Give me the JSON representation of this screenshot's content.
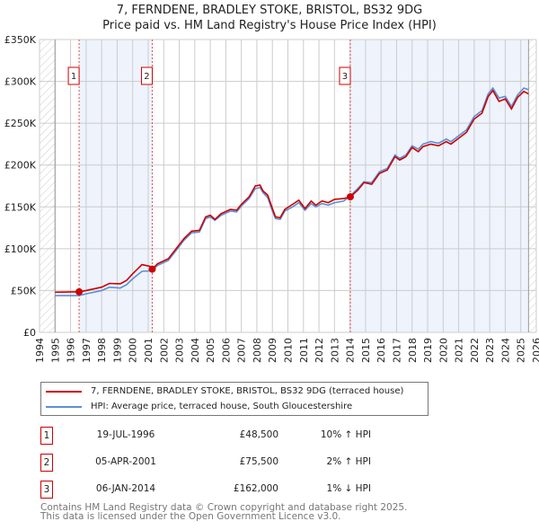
{
  "chart_data": {
    "type": "line",
    "title": "7, FERNDENE, BRADLEY STOKE, BRISTOL, BS32 9DG",
    "subtitle": "Price paid vs. HM Land Registry's House Price Index (HPI)",
    "xlim": [
      1994,
      2026
    ],
    "ylim": [
      0,
      350000
    ],
    "yticks": [
      0,
      50000,
      100000,
      150000,
      200000,
      250000,
      300000,
      350000
    ],
    "ytick_labels": [
      "£0",
      "£50K",
      "£100K",
      "£150K",
      "£200K",
      "£250K",
      "£300K",
      "£350K"
    ],
    "xticks": [
      1994,
      1995,
      1996,
      1997,
      1998,
      1999,
      2000,
      2001,
      2002,
      2003,
      2004,
      2005,
      2006,
      2007,
      2008,
      2009,
      2010,
      2011,
      2012,
      2013,
      2014,
      2015,
      2016,
      2017,
      2018,
      2019,
      2020,
      2021,
      2022,
      2023,
      2024,
      2025,
      2026
    ],
    "grid": true,
    "legend_placement": "below",
    "series": [
      {
        "name": "7, FERNDENE, BRADLEY STOKE, BRISTOL, BS32 9DG (terraced house)",
        "color": "#cc0000",
        "points": [
          [
            1995,
            48000
          ],
          [
            1996.55,
            48500
          ],
          [
            1997,
            50000
          ],
          [
            1998,
            54000
          ],
          [
            1998.5,
            58500
          ],
          [
            1999.2,
            58000
          ],
          [
            1999.6,
            62000
          ],
          [
            2000,
            70000
          ],
          [
            2000.6,
            81000
          ],
          [
            2001.1,
            79000
          ],
          [
            2001.26,
            75500
          ],
          [
            2001.6,
            82000
          ],
          [
            2002.3,
            88000
          ],
          [
            2002.8,
            100000
          ],
          [
            2003.3,
            112000
          ],
          [
            2003.8,
            121000
          ],
          [
            2004.3,
            122000
          ],
          [
            2004.7,
            138000
          ],
          [
            2005,
            140000
          ],
          [
            2005.3,
            135000
          ],
          [
            2005.7,
            142000
          ],
          [
            2006.3,
            147000
          ],
          [
            2006.7,
            146000
          ],
          [
            2007,
            153000
          ],
          [
            2007.5,
            162000
          ],
          [
            2007.9,
            175000
          ],
          [
            2008.2,
            176000
          ],
          [
            2008.4,
            169000
          ],
          [
            2008.7,
            164000
          ],
          [
            2009,
            148000
          ],
          [
            2009.2,
            138000
          ],
          [
            2009.5,
            137000
          ],
          [
            2009.8,
            147000
          ],
          [
            2010.3,
            153000
          ],
          [
            2010.7,
            158000
          ],
          [
            2011.1,
            148000
          ],
          [
            2011.5,
            157000
          ],
          [
            2011.8,
            152000
          ],
          [
            2012.2,
            157000
          ],
          [
            2012.6,
            155000
          ],
          [
            2013,
            159000
          ],
          [
            2013.6,
            160000
          ],
          [
            2014.02,
            162000
          ],
          [
            2014.5,
            170000
          ],
          [
            2014.9,
            179000
          ],
          [
            2015.4,
            177000
          ],
          [
            2015.9,
            190000
          ],
          [
            2016.4,
            194000
          ],
          [
            2016.9,
            210000
          ],
          [
            2017.2,
            206000
          ],
          [
            2017.6,
            210000
          ],
          [
            2018,
            221000
          ],
          [
            2018.4,
            216000
          ],
          [
            2018.7,
            222000
          ],
          [
            2019.2,
            225000
          ],
          [
            2019.7,
            223000
          ],
          [
            2020.2,
            228000
          ],
          [
            2020.5,
            225000
          ],
          [
            2021,
            232000
          ],
          [
            2021.5,
            239000
          ],
          [
            2022,
            255000
          ],
          [
            2022.5,
            262000
          ],
          [
            2022.9,
            282000
          ],
          [
            2023.2,
            289000
          ],
          [
            2023.6,
            276000
          ],
          [
            2024,
            279000
          ],
          [
            2024.4,
            267000
          ],
          [
            2024.8,
            281000
          ],
          [
            2025.2,
            288000
          ],
          [
            2025.5,
            285000
          ]
        ]
      },
      {
        "name": "HPI: Average price, terraced house, South Gloucestershire",
        "color": "#5b8fd6",
        "points": [
          [
            1995,
            44000
          ],
          [
            1996.55,
            44000
          ],
          [
            1997,
            46000
          ],
          [
            1998,
            50000
          ],
          [
            1998.5,
            54000
          ],
          [
            1999.2,
            53000
          ],
          [
            1999.6,
            57000
          ],
          [
            2000,
            64000
          ],
          [
            2000.6,
            73000
          ],
          [
            2001.1,
            73500
          ],
          [
            2001.26,
            74000
          ],
          [
            2001.6,
            80000
          ],
          [
            2002.3,
            86000
          ],
          [
            2002.8,
            98000
          ],
          [
            2003.3,
            110000
          ],
          [
            2003.8,
            119000
          ],
          [
            2004.3,
            120000
          ],
          [
            2004.7,
            136000
          ],
          [
            2005,
            138000
          ],
          [
            2005.3,
            134000
          ],
          [
            2005.7,
            140000
          ],
          [
            2006.3,
            145000
          ],
          [
            2006.7,
            144000
          ],
          [
            2007,
            151000
          ],
          [
            2007.5,
            160000
          ],
          [
            2007.9,
            172000
          ],
          [
            2008.2,
            173000
          ],
          [
            2008.4,
            167000
          ],
          [
            2008.7,
            161000
          ],
          [
            2009,
            145000
          ],
          [
            2009.2,
            136000
          ],
          [
            2009.5,
            135000
          ],
          [
            2009.8,
            145000
          ],
          [
            2010.3,
            150000
          ],
          [
            2010.7,
            155000
          ],
          [
            2011.1,
            146000
          ],
          [
            2011.5,
            154000
          ],
          [
            2011.8,
            150000
          ],
          [
            2012.2,
            154000
          ],
          [
            2012.6,
            152000
          ],
          [
            2013,
            155000
          ],
          [
            2013.6,
            157000
          ],
          [
            2014.02,
            163000
          ],
          [
            2014.5,
            172000
          ],
          [
            2014.9,
            180000
          ],
          [
            2015.4,
            179000
          ],
          [
            2015.9,
            192000
          ],
          [
            2016.4,
            196000
          ],
          [
            2016.9,
            212000
          ],
          [
            2017.2,
            208000
          ],
          [
            2017.6,
            212000
          ],
          [
            2018,
            223000
          ],
          [
            2018.4,
            219000
          ],
          [
            2018.7,
            225000
          ],
          [
            2019.2,
            228000
          ],
          [
            2019.7,
            226000
          ],
          [
            2020.2,
            231000
          ],
          [
            2020.5,
            228000
          ],
          [
            2021,
            235000
          ],
          [
            2021.5,
            242000
          ],
          [
            2022,
            258000
          ],
          [
            2022.5,
            265000
          ],
          [
            2022.9,
            285000
          ],
          [
            2023.2,
            292000
          ],
          [
            2023.6,
            280000
          ],
          [
            2024,
            282000
          ],
          [
            2024.4,
            270000
          ],
          [
            2024.8,
            284000
          ],
          [
            2025.2,
            292000
          ],
          [
            2025.5,
            290000
          ]
        ]
      }
    ],
    "sales": [
      {
        "label": "1",
        "x": 1996.55,
        "price": 48500
      },
      {
        "label": "2",
        "x": 2001.26,
        "price": 75500
      },
      {
        "label": "3",
        "x": 2014.02,
        "price": 162000
      }
    ],
    "shaded_ranges": [
      [
        1996.55,
        2001.26
      ],
      [
        2014.02,
        2025.5
      ]
    ],
    "hatched_ranges": [
      [
        1994,
        1995
      ],
      [
        2025.5,
        2026
      ]
    ]
  },
  "legend": {
    "items": [
      "7, FERNDENE, BRADLEY STOKE, BRISTOL, BS32 9DG (terraced house)",
      "HPI: Average price, terraced house, South Gloucestershire"
    ]
  },
  "table": [
    {
      "num": "1",
      "date": "19-JUL-1996",
      "price": "£48,500",
      "hpi": "10% ↑ HPI"
    },
    {
      "num": "2",
      "date": "05-APR-2001",
      "price": "£75,500",
      "hpi": "2% ↑ HPI"
    },
    {
      "num": "3",
      "date": "06-JAN-2014",
      "price": "£162,000",
      "hpi": "1% ↓ HPI"
    }
  ],
  "footer": {
    "line1": "Contains HM Land Registry data © Crown copyright and database right 2025.",
    "line2": "This data is licensed under the Open Government Licence v3.0."
  }
}
